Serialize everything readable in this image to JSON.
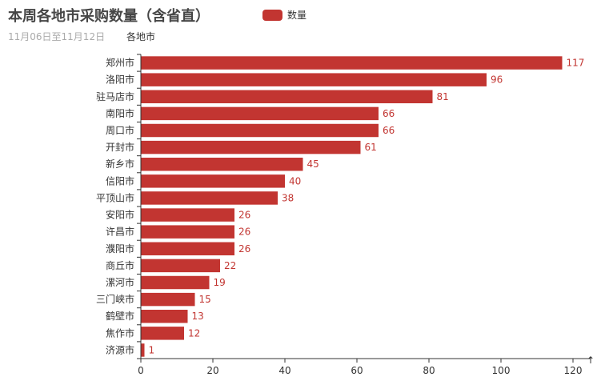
{
  "chart_data": {
    "type": "bar",
    "orientation": "horizontal",
    "title": "本周各地市采购数量（含省直）",
    "subtitle": "11月06日至11月12日",
    "ylabel": "各地市",
    "xlabel": "",
    "legend": [
      "数量"
    ],
    "legend_position": "top-center",
    "color": "#c23531",
    "grid": false,
    "xlim": [
      0,
      120
    ],
    "x_ticks": [
      0,
      20,
      40,
      60,
      80,
      100,
      120
    ],
    "categories": [
      "郑州市",
      "洛阳市",
      "驻马店市",
      "南阳市",
      "周口市",
      "开封市",
      "新乡市",
      "信阳市",
      "平顶山市",
      "安阳市",
      "许昌市",
      "濮阳市",
      "商丘市",
      "漯河市",
      "三门峡市",
      "鹤壁市",
      "焦作市",
      "济源市"
    ],
    "series": [
      {
        "name": "数量",
        "values": [
          117,
          96,
          81,
          66,
          66,
          61,
          45,
          40,
          38,
          26,
          26,
          26,
          22,
          19,
          15,
          13,
          12,
          1
        ]
      }
    ]
  },
  "axis_arrow": "↑"
}
